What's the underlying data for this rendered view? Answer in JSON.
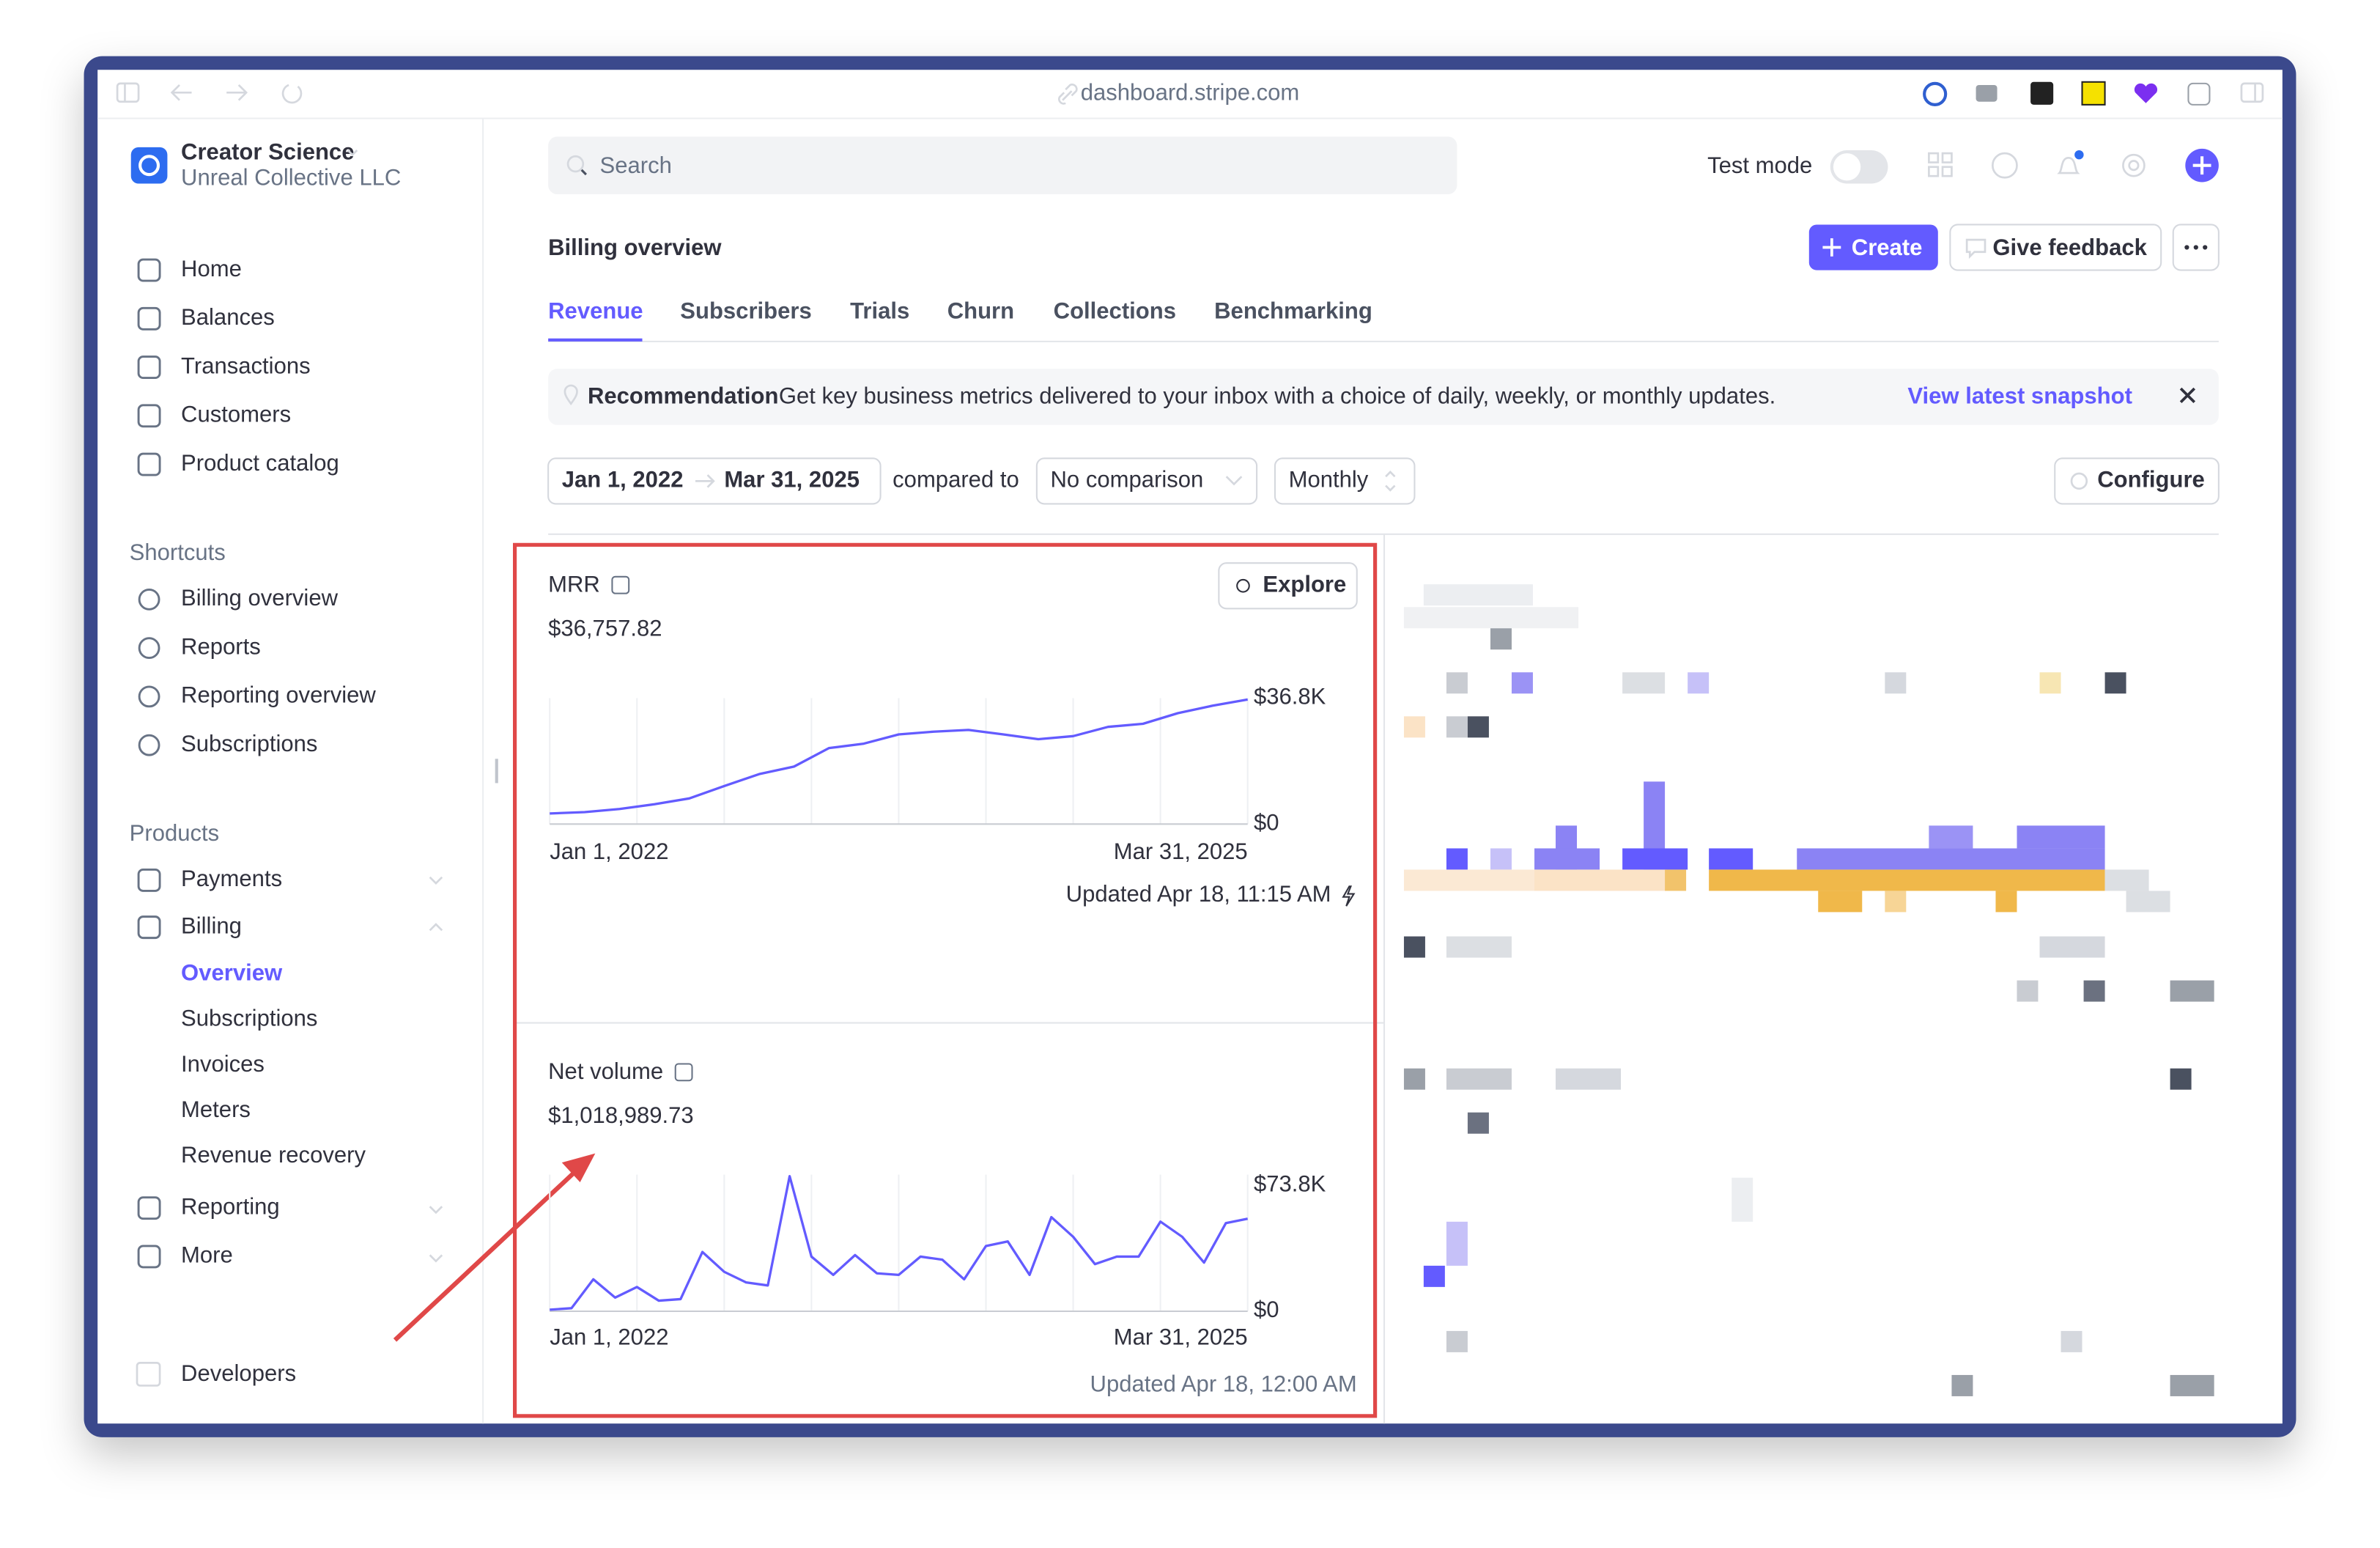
{
  "browser": {
    "url": "dashboard.stripe.com"
  },
  "account": {
    "name": "Creator Science",
    "company": "Unreal Collective LLC"
  },
  "nav": {
    "main": [
      "Home",
      "Balances",
      "Transactions",
      "Customers",
      "Product catalog"
    ],
    "shortcuts_title": "Shortcuts",
    "shortcuts": [
      "Billing overview",
      "Reports",
      "Reporting overview",
      "Subscriptions"
    ],
    "products_title": "Products",
    "products": [
      "Payments",
      "Billing"
    ],
    "billing_items": [
      "Overview",
      "Subscriptions",
      "Invoices",
      "Meters",
      "Revenue recovery"
    ],
    "more": [
      "Reporting",
      "More"
    ],
    "developers": "Developers"
  },
  "topbar": {
    "search": "Search",
    "test_mode": "Test mode"
  },
  "header": {
    "title": "Billing overview",
    "create": "Create",
    "feedback": "Give feedback"
  },
  "tabs": [
    "Revenue",
    "Subscribers",
    "Trials",
    "Churn",
    "Collections",
    "Benchmarking"
  ],
  "banner": {
    "label": "Recommendation",
    "text": "Get key business metrics delivered to your inbox with a choice of daily, weekly, or monthly updates.",
    "link": "View latest snapshot"
  },
  "filters": {
    "start": "Jan 1, 2022",
    "end": "Mar 31, 2025",
    "compared": "compared to",
    "comparison": "No comparison",
    "interval": "Monthly",
    "configure": "Configure"
  },
  "cards": [
    {
      "title": "MRR",
      "value": "$36,757.82",
      "explore": "Explore",
      "updated": "Updated Apr 18, 11:15 AM",
      "chart": {
        "type": "line",
        "color": "#635bff",
        "values": [
          3.1,
          3.5,
          4.4,
          5.8,
          7.5,
          11.1,
          14.6,
          16.8,
          22.2,
          23.5,
          26.2,
          27.0,
          27.5,
          26.2,
          24.8,
          25.7,
          28.4,
          29.3,
          32.4,
          34.6,
          36.4
        ],
        "ylim": [
          0,
          36.8
        ],
        "yticks": [
          {
            "value": 36.8,
            "label": "$36.8K"
          },
          {
            "value": 0,
            "label": "$0"
          }
        ],
        "x_labels": [
          "Jan 1, 2022",
          "Mar 31, 2025"
        ]
      }
    },
    {
      "title": "Net volume",
      "value": "$1,018,989.73",
      "updated": "Updated Apr 18, 12:00 AM",
      "chart": {
        "type": "line",
        "color": "#635bff",
        "values": [
          0.9,
          1.8,
          18.7,
          8.0,
          14.2,
          6.2,
          7.1,
          34.7,
          23.1,
          16.9,
          15.1,
          79.1,
          32.0,
          21.3,
          32.9,
          22.2,
          21.3,
          32.0,
          30.2,
          18.7,
          38.2,
          40.9,
          21.3,
          55.1,
          43.6,
          27.6,
          32.0,
          32.0,
          52.5,
          43.6,
          28.5,
          51.6,
          54.2
        ],
        "ylim": [
          0,
          80
        ],
        "yticks": [
          {
            "value": 73.8,
            "label": "$73.8K"
          },
          {
            "value": 0,
            "label": "$0"
          }
        ],
        "x_labels": [
          "Jan 1, 2022",
          "Mar 31, 2025"
        ]
      }
    }
  ]
}
